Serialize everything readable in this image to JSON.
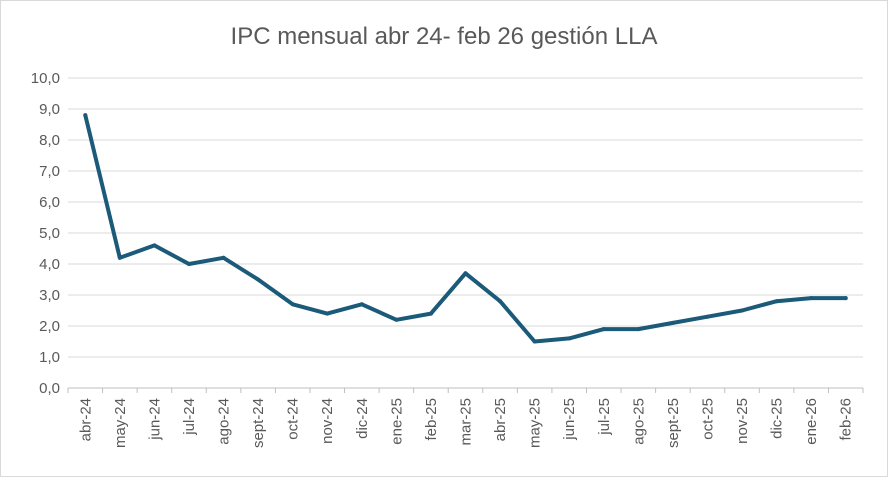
{
  "chart_data": {
    "type": "line",
    "title": "IPC  mensual abr 24- feb 26 gestión LLA",
    "xlabel": "",
    "ylabel": "",
    "ylim": [
      0,
      10
    ],
    "ytick_step": 1,
    "ytick_labels": [
      "0,0",
      "1,0",
      "2,0",
      "3,0",
      "4,0",
      "5,0",
      "6,0",
      "7,0",
      "8,0",
      "9,0",
      "10,0"
    ],
    "grid": true,
    "legend": "none",
    "categories": [
      "abr-24",
      "may-24",
      "jun-24",
      "jul-24",
      "ago-24",
      "sept-24",
      "oct-24",
      "nov-24",
      "dic-24",
      "ene-25",
      "feb-25",
      "mar-25",
      "abr-25",
      "may-25",
      "jun-25",
      "jul-25",
      "ago-25",
      "sept-25",
      "oct-25",
      "nov-25",
      "dic-25",
      "ene-26",
      "feb-26"
    ],
    "series": [
      {
        "name": "IPC mensual",
        "color": "#1b5a78",
        "values": [
          8.8,
          4.2,
          4.6,
          4.0,
          4.2,
          3.5,
          2.7,
          2.4,
          2.7,
          2.2,
          2.4,
          3.7,
          2.8,
          1.5,
          1.6,
          1.9,
          1.9,
          2.1,
          2.3,
          2.5,
          2.8,
          2.9,
          2.9
        ]
      }
    ]
  }
}
